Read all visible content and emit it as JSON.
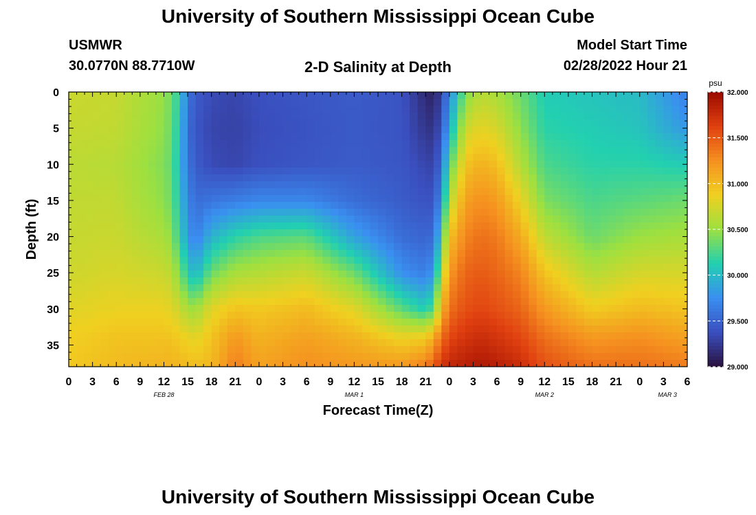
{
  "page": {
    "title": "University of Southern Mississippi Ocean Cube",
    "bottom_title": "University of Southern Mississippi Ocean Cube",
    "station": "USMWR",
    "coords": "30.0770N  88.7710W",
    "subtitle": "2-D Salinity at Depth",
    "model_label": "Model Start Time",
    "model_time": "02/28/2022 Hour 21"
  },
  "chart_data": {
    "type": "heatmap",
    "title": "2-D Salinity at Depth",
    "xlabel": "Forecast Time(Z)",
    "ylabel": "Depth (ft)",
    "x_tick_labels": [
      "0",
      "3",
      "6",
      "9",
      "12",
      "15",
      "18",
      "21",
      "0",
      "3",
      "6",
      "9",
      "12",
      "15",
      "18",
      "21",
      "0",
      "3",
      "6",
      "9",
      "12",
      "15",
      "18",
      "21",
      "0",
      "3",
      "6"
    ],
    "date_labels": [
      "FEB 28",
      "MAR 1",
      "MAR 2",
      "MAR 3"
    ],
    "y_tick_labels": [
      "0",
      "5",
      "10",
      "15",
      "20",
      "25",
      "30",
      "35"
    ],
    "ylim": [
      0,
      38
    ],
    "colorbar": {
      "unit": "psu",
      "min": 29.0,
      "max": 32.0,
      "tick_labels": [
        "32.000",
        "31.500",
        "31.000",
        "30.500",
        "30.000",
        "29.500",
        "29.000"
      ],
      "colors": [
        "#2a1240",
        "#3a4fbf",
        "#3a8ff0",
        "#22d0b0",
        "#9de040",
        "#f0d020",
        "#f59020",
        "#e04010",
        "#9a0a00"
      ]
    },
    "depth_levels_ft": [
      0,
      5,
      10,
      15,
      20,
      25,
      30,
      34,
      38
    ],
    "time_hours": [
      0,
      6,
      12,
      13,
      14,
      15,
      16,
      18,
      21,
      24,
      30,
      36,
      42,
      45,
      46,
      47,
      48,
      50,
      52,
      54,
      57,
      60,
      66,
      72,
      78
    ],
    "salinity_psu": [
      [
        30.7,
        30.68,
        30.64,
        30.66,
        30.68,
        30.72,
        30.8,
        30.88,
        30.92
      ],
      [
        30.68,
        30.66,
        30.62,
        30.66,
        30.7,
        30.76,
        30.85,
        30.95,
        31.0
      ],
      [
        30.48,
        30.46,
        30.42,
        30.45,
        30.55,
        30.7,
        30.85,
        30.95,
        31.05
      ],
      [
        30.36,
        30.34,
        30.32,
        30.35,
        30.45,
        30.62,
        30.8,
        30.95,
        31.05
      ],
      [
        30.1,
        30.05,
        30.0,
        30.05,
        30.15,
        30.4,
        30.7,
        30.9,
        31.02
      ],
      [
        29.6,
        29.55,
        29.6,
        29.7,
        29.8,
        30.1,
        30.55,
        30.85,
        31.0
      ],
      [
        29.45,
        29.42,
        29.45,
        29.55,
        29.65,
        29.95,
        30.5,
        30.8,
        30.98
      ],
      [
        29.35,
        29.32,
        29.35,
        29.6,
        29.95,
        30.35,
        30.8,
        30.95,
        31.02
      ],
      [
        29.32,
        29.3,
        29.32,
        29.65,
        30.15,
        30.55,
        30.95,
        31.2,
        31.35
      ],
      [
        29.38,
        29.36,
        29.38,
        29.7,
        30.25,
        30.6,
        30.92,
        31.05,
        31.15
      ],
      [
        29.42,
        29.4,
        29.42,
        29.7,
        30.3,
        30.7,
        31.0,
        31.15,
        31.25
      ],
      [
        29.45,
        29.44,
        29.45,
        29.55,
        29.85,
        30.35,
        30.8,
        31.05,
        31.2
      ],
      [
        29.4,
        29.4,
        29.42,
        29.45,
        29.55,
        29.75,
        30.3,
        30.85,
        31.2
      ],
      [
        29.15,
        29.22,
        29.32,
        29.4,
        29.5,
        29.65,
        30.1,
        30.9,
        31.35
      ],
      [
        29.1,
        29.2,
        29.3,
        29.4,
        29.55,
        29.8,
        30.3,
        31.1,
        31.5
      ],
      [
        29.3,
        29.4,
        29.55,
        29.75,
        30.1,
        30.55,
        31.0,
        31.4,
        31.7
      ],
      [
        29.7,
        29.9,
        30.25,
        30.6,
        30.95,
        31.2,
        31.4,
        31.6,
        31.8
      ],
      [
        30.4,
        30.7,
        30.95,
        31.15,
        31.3,
        31.45,
        31.55,
        31.7,
        31.85
      ],
      [
        30.62,
        30.82,
        31.05,
        31.25,
        31.4,
        31.5,
        31.6,
        31.75,
        31.9
      ],
      [
        30.55,
        30.75,
        30.98,
        31.18,
        31.35,
        31.45,
        31.55,
        31.7,
        31.85
      ],
      [
        30.35,
        30.45,
        30.6,
        30.85,
        31.1,
        31.3,
        31.45,
        31.6,
        31.75
      ],
      [
        30.1,
        30.15,
        30.25,
        30.4,
        30.65,
        30.95,
        31.2,
        31.4,
        31.55
      ],
      [
        30.05,
        30.1,
        30.15,
        30.25,
        30.35,
        30.6,
        30.9,
        31.2,
        31.4
      ],
      [
        30.0,
        30.05,
        30.15,
        30.3,
        30.5,
        30.75,
        31.0,
        31.25,
        31.4
      ],
      [
        29.65,
        29.8,
        30.1,
        30.35,
        30.55,
        30.75,
        30.95,
        31.15,
        31.35
      ]
    ]
  }
}
